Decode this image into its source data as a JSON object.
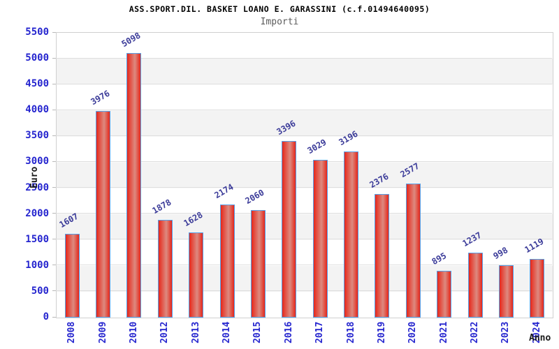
{
  "title": "ASS.SPORT.DIL. BASKET LOANO E. GARASSINI (c.f.01494640095)",
  "subtitle": "Importi",
  "chart_data": {
    "type": "bar",
    "title": "ASS.SPORT.DIL. BASKET LOANO E. GARASSINI (c.f.01494640095)",
    "subtitle": "Importi",
    "categories": [
      "2008",
      "2009",
      "2010",
      "2012",
      "2013",
      "2014",
      "2015",
      "2016",
      "2017",
      "2018",
      "2019",
      "2020",
      "2021",
      "2022",
      "2023",
      "2024"
    ],
    "values": [
      1607,
      3976,
      5098,
      1878,
      1628,
      2174,
      2060,
      3396,
      3029,
      3196,
      2376,
      2577,
      895,
      1237,
      998,
      1119
    ],
    "xlabel": "Anno",
    "ylabel": "Euro",
    "ylim": [
      0,
      5500
    ],
    "yticks": [
      0,
      500,
      1000,
      1500,
      2000,
      2500,
      3000,
      3500,
      4000,
      4500,
      5000,
      5500
    ],
    "grid": "horizontal",
    "legend": "none",
    "bands": "alternating-horizontal"
  },
  "colors": {
    "title_color": "#000000",
    "subtitle_color": "#5c5c5c",
    "axis_blue": "#2626cf",
    "value_navy": "#3b3b99",
    "bar_red": "#e6261a",
    "bar_light": "#dd8a80",
    "bar_border": "#55a0e8",
    "band_color": "#f3f3f3",
    "grid_color": "#dedede",
    "plot_border": "#d0d0d0",
    "tick_color": "#b8b8b8"
  }
}
